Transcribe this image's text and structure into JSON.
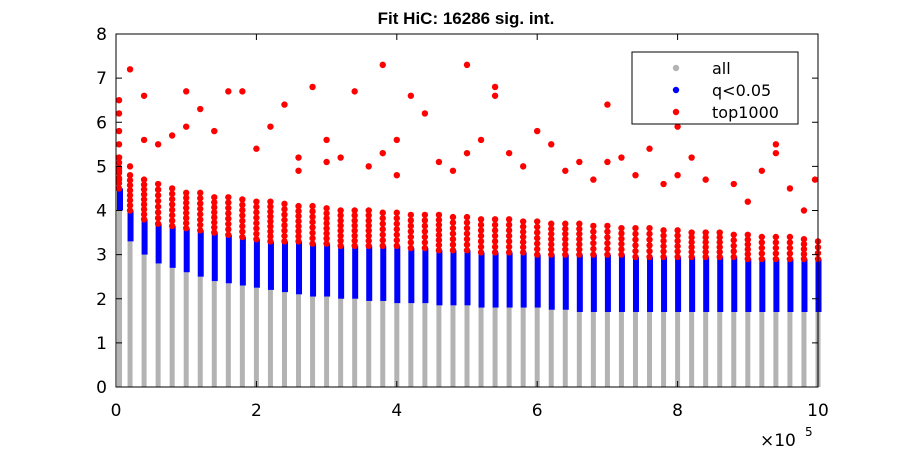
{
  "chart_data": {
    "type": "scatter",
    "title": "Fit HiC: 16286 sig. int.",
    "xlabel": "",
    "ylabel": "",
    "xlim": [
      0,
      1000000
    ],
    "ylim": [
      0,
      8
    ],
    "x_ticks": [
      0,
      200000,
      400000,
      600000,
      800000,
      1000000
    ],
    "x_tick_labels": [
      "0",
      "2",
      "4",
      "6",
      "8",
      "10"
    ],
    "x_exponent": {
      "base": "×10",
      "power": "5"
    },
    "y_ticks": [
      0,
      1,
      2,
      3,
      4,
      5,
      6,
      7,
      8
    ],
    "y_tick_labels": [
      "0",
      "1",
      "2",
      "3",
      "4",
      "5",
      "6",
      "7",
      "8"
    ],
    "grid": false,
    "legend_position": "top-right",
    "columns_x": [
      0,
      20000,
      40000,
      60000,
      80000,
      100000,
      120000,
      140000,
      160000,
      180000,
      200000,
      220000,
      240000,
      260000,
      280000,
      300000,
      320000,
      340000,
      360000,
      380000,
      400000,
      420000,
      440000,
      460000,
      480000,
      500000,
      520000,
      540000,
      560000,
      580000,
      600000,
      620000,
      640000,
      660000,
      680000,
      700000,
      720000,
      740000,
      760000,
      780000,
      800000,
      820000,
      840000,
      860000,
      880000,
      900000,
      920000,
      940000,
      960000,
      980000,
      1000000
    ],
    "series": [
      {
        "name": "all",
        "color": "#b3b3b3",
        "max_y": [
          4.0,
          3.3,
          3.0,
          2.8,
          2.7,
          2.6,
          2.5,
          2.4,
          2.35,
          2.3,
          2.25,
          2.2,
          2.15,
          2.1,
          2.05,
          2.05,
          2.0,
          2.0,
          1.95,
          1.95,
          1.9,
          1.9,
          1.9,
          1.85,
          1.85,
          1.85,
          1.8,
          1.8,
          1.8,
          1.8,
          1.8,
          1.75,
          1.75,
          1.7,
          1.7,
          1.7,
          1.7,
          1.7,
          1.7,
          1.7,
          1.7,
          1.7,
          1.7,
          1.7,
          1.7,
          1.7,
          1.7,
          1.7,
          1.7,
          1.7,
          1.7
        ]
      },
      {
        "name": "q<0.05",
        "color": "#0000ff",
        "min_y": [
          4.0,
          3.3,
          3.0,
          2.8,
          2.7,
          2.6,
          2.5,
          2.4,
          2.35,
          2.3,
          2.25,
          2.2,
          2.15,
          2.1,
          2.05,
          2.05,
          2.0,
          2.0,
          1.95,
          1.95,
          1.9,
          1.9,
          1.9,
          1.85,
          1.85,
          1.85,
          1.8,
          1.8,
          1.8,
          1.8,
          1.8,
          1.75,
          1.75,
          1.7,
          1.7,
          1.7,
          1.7,
          1.7,
          1.7,
          1.7,
          1.7,
          1.7,
          1.7,
          1.7,
          1.7,
          1.7,
          1.7,
          1.7,
          1.7,
          1.7,
          1.7
        ],
        "max_y": [
          4.5,
          4.0,
          3.8,
          3.7,
          3.65,
          3.6,
          3.55,
          3.5,
          3.45,
          3.4,
          3.35,
          3.3,
          3.3,
          3.3,
          3.25,
          3.25,
          3.2,
          3.2,
          3.2,
          3.2,
          3.2,
          3.15,
          3.15,
          3.1,
          3.1,
          3.1,
          3.05,
          3.05,
          3.05,
          3.05,
          3.0,
          3.0,
          3.0,
          3.0,
          3.0,
          3.0,
          3.0,
          2.95,
          2.95,
          2.95,
          2.95,
          2.95,
          2.95,
          2.95,
          2.95,
          2.9,
          2.9,
          2.9,
          2.9,
          2.9,
          2.9
        ]
      },
      {
        "name": "top1000",
        "color": "#ff0000",
        "points": [
          [
            0,
            6.5
          ],
          [
            0,
            6.2
          ],
          [
            0,
            5.8
          ],
          [
            0,
            5.5
          ],
          [
            0,
            5.2
          ],
          [
            0,
            4.9
          ],
          [
            0,
            4.7
          ],
          [
            20000,
            7.2
          ],
          [
            20000,
            5.0
          ],
          [
            40000,
            6.6
          ],
          [
            40000,
            5.6
          ],
          [
            60000,
            5.5
          ],
          [
            80000,
            5.7
          ],
          [
            100000,
            6.7
          ],
          [
            100000,
            5.9
          ],
          [
            120000,
            6.3
          ],
          [
            140000,
            5.8
          ],
          [
            160000,
            6.7
          ],
          [
            180000,
            6.7
          ],
          [
            200000,
            5.4
          ],
          [
            220000,
            5.9
          ],
          [
            240000,
            6.4
          ],
          [
            260000,
            5.2
          ],
          [
            260000,
            4.9
          ],
          [
            280000,
            6.8
          ],
          [
            300000,
            5.6
          ],
          [
            300000,
            5.1
          ],
          [
            320000,
            5.2
          ],
          [
            340000,
            6.7
          ],
          [
            360000,
            5.0
          ],
          [
            380000,
            7.3
          ],
          [
            380000,
            5.3
          ],
          [
            400000,
            5.6
          ],
          [
            400000,
            4.8
          ],
          [
            420000,
            6.6
          ],
          [
            440000,
            6.2
          ],
          [
            460000,
            5.1
          ],
          [
            480000,
            4.9
          ],
          [
            500000,
            7.3
          ],
          [
            500000,
            5.3
          ],
          [
            520000,
            5.6
          ],
          [
            540000,
            6.8
          ],
          [
            540000,
            6.6
          ],
          [
            560000,
            5.3
          ],
          [
            580000,
            5.0
          ],
          [
            600000,
            5.8
          ],
          [
            620000,
            5.5
          ],
          [
            640000,
            4.9
          ],
          [
            660000,
            5.1
          ],
          [
            680000,
            4.7
          ],
          [
            700000,
            6.4
          ],
          [
            700000,
            5.1
          ],
          [
            720000,
            5.2
          ],
          [
            740000,
            4.8
          ],
          [
            760000,
            5.4
          ],
          [
            780000,
            4.6
          ],
          [
            800000,
            5.9
          ],
          [
            800000,
            4.8
          ],
          [
            820000,
            5.2
          ],
          [
            840000,
            4.7
          ],
          [
            860000,
            6.6
          ],
          [
            880000,
            4.6
          ],
          [
            900000,
            4.2
          ],
          [
            920000,
            4.9
          ],
          [
            940000,
            5.5
          ],
          [
            940000,
            5.3
          ],
          [
            960000,
            4.5
          ],
          [
            980000,
            4.0
          ],
          [
            1000000,
            4.7
          ]
        ],
        "band_top_y": [
          5.2,
          4.8,
          4.7,
          4.6,
          4.5,
          4.4,
          4.4,
          4.3,
          4.3,
          4.25,
          4.2,
          4.2,
          4.15,
          4.1,
          4.1,
          4.05,
          4.0,
          4.0,
          4.0,
          3.95,
          3.95,
          3.9,
          3.9,
          3.9,
          3.85,
          3.85,
          3.8,
          3.8,
          3.8,
          3.75,
          3.75,
          3.7,
          3.7,
          3.7,
          3.65,
          3.65,
          3.6,
          3.6,
          3.6,
          3.55,
          3.55,
          3.5,
          3.5,
          3.5,
          3.45,
          3.45,
          3.4,
          3.4,
          3.4,
          3.35,
          3.3
        ]
      }
    ]
  }
}
